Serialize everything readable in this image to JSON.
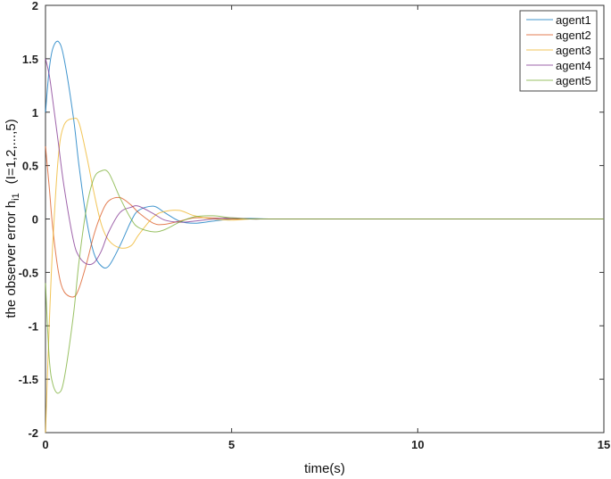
{
  "chart_data": {
    "type": "line",
    "title": "",
    "xlabel": "time(s)",
    "ylabel": "the observer error h",
    "ylabel_subscript": "i1",
    "ylabel_suffix": "(I=1,2,...,5)",
    "xlim": [
      0,
      15
    ],
    "ylim": [
      -2,
      2
    ],
    "xticks": [
      0,
      5,
      10,
      15
    ],
    "xtick_labels": [
      "0",
      "5",
      "10",
      "15"
    ],
    "yticks": [
      -2,
      -1.5,
      -1,
      -0.5,
      0,
      0.5,
      1,
      1.5,
      2
    ],
    "ytick_labels": [
      "-2",
      "-1.5",
      "-1",
      "-0.5",
      "0",
      "0.5",
      "1",
      "1.5",
      "2"
    ],
    "grid": false,
    "legend_position": "upper right",
    "x": [
      0,
      0.1,
      0.2,
      0.35,
      0.5,
      0.75,
      0.9,
      1.1,
      1.3,
      1.5,
      1.7,
      2.0,
      2.3,
      2.5,
      2.9,
      3.2,
      3.6,
      4.0,
      4.5,
      5.0,
      5.5,
      6.0,
      7.0,
      8.0,
      10.0,
      12.0,
      15.0
    ],
    "series": [
      {
        "name": "agent1",
        "color": "#0072BD",
        "values": [
          1.0,
          1.4,
          1.6,
          1.66,
          1.5,
          0.95,
          0.5,
          0.0,
          -0.32,
          -0.44,
          -0.44,
          -0.25,
          -0.02,
          0.08,
          0.12,
          0.06,
          -0.02,
          -0.04,
          -0.02,
          0.0,
          0.005,
          0.0,
          0,
          0,
          0,
          0,
          0
        ]
      },
      {
        "name": "agent2",
        "color": "#D95319",
        "values": [
          0.68,
          0.3,
          -0.1,
          -0.5,
          -0.68,
          -0.73,
          -0.65,
          -0.42,
          -0.15,
          0.05,
          0.17,
          0.2,
          0.13,
          0.06,
          -0.04,
          -0.05,
          -0.02,
          0.01,
          0.01,
          0.0,
          0.0,
          0.0,
          0,
          0,
          0,
          0,
          0
        ]
      },
      {
        "name": "agent3",
        "color": "#EDB120",
        "values": [
          -2.0,
          -1.0,
          -0.2,
          0.6,
          0.88,
          0.94,
          0.9,
          0.6,
          0.25,
          -0.05,
          -0.2,
          -0.27,
          -0.25,
          -0.15,
          0.02,
          0.07,
          0.08,
          0.03,
          0.0,
          -0.01,
          0.0,
          0.0,
          0,
          0,
          0,
          0,
          0
        ]
      },
      {
        "name": "agent4",
        "color": "#7E2F8E",
        "values": [
          1.5,
          1.35,
          1.1,
          0.7,
          0.3,
          -0.2,
          -0.35,
          -0.42,
          -0.41,
          -0.3,
          -0.12,
          0.06,
          0.11,
          0.12,
          0.05,
          -0.01,
          -0.03,
          -0.02,
          0.0,
          0.01,
          0.0,
          0.0,
          0,
          0,
          0,
          0,
          0
        ]
      },
      {
        "name": "agent5",
        "color": "#77AC30",
        "values": [
          -0.6,
          -1.3,
          -1.55,
          -1.63,
          -1.5,
          -0.9,
          -0.4,
          0.1,
          0.38,
          0.45,
          0.43,
          0.2,
          0.0,
          -0.08,
          -0.12,
          -0.1,
          -0.03,
          0.02,
          0.03,
          0.01,
          0.0,
          0.0,
          0,
          0,
          0,
          0,
          0
        ]
      }
    ]
  }
}
